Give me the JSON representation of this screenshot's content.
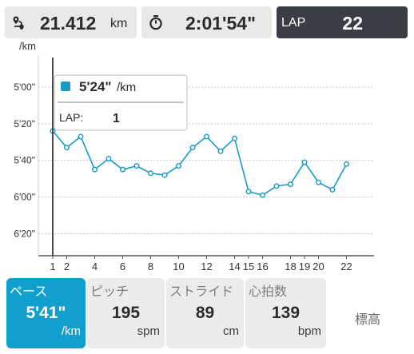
{
  "header": {
    "distance": "21.412",
    "distance_unit": "km",
    "time": "2:01'54\"",
    "lap_label": "LAP",
    "lap_value": "22"
  },
  "chart_data": {
    "type": "line",
    "ylabel": "/km",
    "y_reversed": true,
    "ylim_seconds": [
      283,
      392
    ],
    "yticks": [
      {
        "label": "5'00\"",
        "seconds": 300
      },
      {
        "label": "5'20\"",
        "seconds": 320
      },
      {
        "label": "5'40\"",
        "seconds": 340
      },
      {
        "label": "6'00\"",
        "seconds": 360
      },
      {
        "label": "6'20\"",
        "seconds": 380
      }
    ],
    "xticks": [
      1,
      2,
      4,
      6,
      8,
      10,
      12,
      14,
      15,
      16,
      18,
      19,
      20,
      22
    ],
    "selected_lap": 1,
    "color": "#1a9ac6",
    "series": [
      {
        "x": [
          1,
          2,
          3,
          4,
          5,
          6,
          7,
          8,
          9,
          10,
          11,
          12,
          13,
          14,
          15,
          16,
          17,
          18,
          19,
          20,
          21,
          22
        ],
        "y_seconds": [
          324,
          333,
          327,
          345,
          339,
          345,
          343,
          347,
          348,
          343,
          333,
          327,
          335,
          328,
          357,
          359,
          354,
          353,
          341,
          352,
          356,
          342
        ]
      }
    ],
    "tooltip": {
      "pace": "5'24\"",
      "pace_unit": "/km",
      "lap_label": "LAP:",
      "lap_value": "1"
    }
  },
  "metrics": [
    {
      "label": "ペース",
      "value": "5'41\"",
      "unit": "/km",
      "active": true
    },
    {
      "label": "ピッチ",
      "value": "195",
      "unit": "spm",
      "active": false
    },
    {
      "label": "ストライド",
      "value": "89",
      "unit": "cm",
      "active": false
    },
    {
      "label": "心拍数",
      "value": "139",
      "unit": "bpm",
      "active": false
    }
  ],
  "elevation_label": "標高"
}
